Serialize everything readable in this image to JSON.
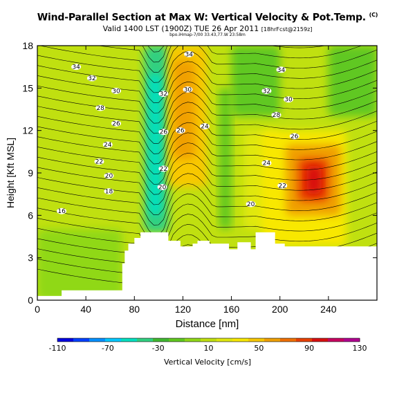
{
  "chart_data": {
    "type": "heatmap",
    "title": "Wind-Parallel Section at Max W: Vertical Velocity & Pot.Temp.",
    "title_mark": "(C)",
    "subtitle": "Valid 1400 LST (1900Z) TUE 26 Apr 2011",
    "subtitle_note": "[18hrFcst@2159z]",
    "credit": "bpo.iHmap-7/00 33.43,77.W 23:58m",
    "xlabel": "Distance [nm]",
    "ylabel": "Height [Kft MSL]",
    "xlim": [
      0,
      280
    ],
    "ylim": [
      0,
      18
    ],
    "xticks": [
      0,
      40,
      80,
      120,
      160,
      200,
      240
    ],
    "yticks": [
      0,
      3,
      6,
      9,
      12,
      15,
      18
    ],
    "colorbar": {
      "label": "Vertical Velocity [cm/s]",
      "ticks": [
        -110,
        -70,
        -30,
        10,
        50,
        90,
        130
      ],
      "colors": [
        "#0000e0",
        "#0040ff",
        "#0090ff",
        "#00c8ff",
        "#00e0c0",
        "#30d080",
        "#40b830",
        "#60c820",
        "#90d818",
        "#c0e010",
        "#e0e810",
        "#f8e800",
        "#f8c800",
        "#f0a000",
        "#f07000",
        "#e84000",
        "#d81010",
        "#c80060",
        "#b00090"
      ]
    },
    "fill_regions": [
      {
        "x": [
          0,
          280
        ],
        "y": [
          0,
          18
        ],
        "w": 5
      },
      {
        "x": [
          0,
          70
        ],
        "y": [
          0,
          5
        ],
        "w": 0
      },
      {
        "x": [
          88,
          108
        ],
        "y": [
          4.8,
          18
        ],
        "w": -40
      },
      {
        "x": [
          92,
          102
        ],
        "y": [
          6,
          16
        ],
        "w": -55
      },
      {
        "x": [
          108,
          140
        ],
        "y": [
          8,
          18
        ],
        "w": 45
      },
      {
        "x": [
          112,
          130
        ],
        "y": [
          10,
          17
        ],
        "w": 60
      },
      {
        "x": [
          150,
          160
        ],
        "y": [
          5,
          15
        ],
        "w": -10
      },
      {
        "x": [
          170,
          200
        ],
        "y": [
          5,
          12
        ],
        "w": 20
      },
      {
        "x": [
          185,
          255
        ],
        "y": [
          3.8,
          12
        ],
        "w": 40
      },
      {
        "x": [
          205,
          250
        ],
        "y": [
          6,
          11
        ],
        "w": 65
      },
      {
        "x": [
          215,
          240
        ],
        "y": [
          7,
          10
        ],
        "w": 85
      },
      {
        "x": [
          222,
          234
        ],
        "y": [
          7.5,
          9.5
        ],
        "w": 95
      },
      {
        "x": [
          160,
          200
        ],
        "y": [
          13,
          18
        ],
        "w": -15
      },
      {
        "x": [
          240,
          280
        ],
        "y": [
          13,
          18
        ],
        "w": -20
      }
    ],
    "terrain": [
      [
        0,
        0
      ],
      [
        0,
        0.3
      ],
      [
        20,
        0.3
      ],
      [
        20,
        0.7
      ],
      [
        70,
        0.7
      ],
      [
        70,
        2.6
      ],
      [
        72,
        2.6
      ],
      [
        72,
        3.5
      ],
      [
        75,
        3.5
      ],
      [
        75,
        4.0
      ],
      [
        80,
        4.0
      ],
      [
        80,
        4.4
      ],
      [
        85,
        4.4
      ],
      [
        85,
        4.8
      ],
      [
        108,
        4.8
      ],
      [
        108,
        4.2
      ],
      [
        118,
        4.2
      ],
      [
        118,
        3.8
      ],
      [
        128,
        3.8
      ],
      [
        128,
        4.0
      ],
      [
        132,
        4.0
      ],
      [
        132,
        4.2
      ],
      [
        142,
        4.2
      ],
      [
        142,
        4.0
      ],
      [
        158,
        4.0
      ],
      [
        158,
        3.6
      ],
      [
        165,
        3.6
      ],
      [
        165,
        4.1
      ],
      [
        176,
        4.1
      ],
      [
        176,
        3.6
      ],
      [
        180,
        3.6
      ],
      [
        180,
        4.8
      ],
      [
        196,
        4.8
      ],
      [
        196,
        4.0
      ],
      [
        204,
        4.0
      ],
      [
        204,
        3.8
      ],
      [
        280,
        3.8
      ],
      [
        280,
        0
      ]
    ],
    "isentrope_labels": [
      {
        "text": "34",
        "x": 32,
        "y": 16.5
      },
      {
        "text": "32",
        "x": 45,
        "y": 15.7
      },
      {
        "text": "30",
        "x": 65,
        "y": 14.8
      },
      {
        "text": "28",
        "x": 52,
        "y": 13.6
      },
      {
        "text": "26",
        "x": 65,
        "y": 12.5
      },
      {
        "text": "24",
        "x": 58,
        "y": 11.0
      },
      {
        "text": "22",
        "x": 51,
        "y": 9.8
      },
      {
        "text": "20",
        "x": 59,
        "y": 8.8
      },
      {
        "text": "18",
        "x": 59,
        "y": 7.7
      },
      {
        "text": "16",
        "x": 20,
        "y": 6.3
      },
      {
        "text": "32",
        "x": 104,
        "y": 14.6
      },
      {
        "text": "26",
        "x": 104,
        "y": 11.9
      },
      {
        "text": "22",
        "x": 104,
        "y": 9.3
      },
      {
        "text": "20",
        "x": 103,
        "y": 8.0
      },
      {
        "text": "34",
        "x": 125,
        "y": 17.4
      },
      {
        "text": "30",
        "x": 124,
        "y": 14.9
      },
      {
        "text": "26",
        "x": 118,
        "y": 12.0
      },
      {
        "text": "24",
        "x": 138,
        "y": 12.3
      },
      {
        "text": "34",
        "x": 201,
        "y": 16.3
      },
      {
        "text": "32",
        "x": 189,
        "y": 14.8
      },
      {
        "text": "30",
        "x": 207,
        "y": 14.2
      },
      {
        "text": "28",
        "x": 197,
        "y": 13.1
      },
      {
        "text": "26",
        "x": 212,
        "y": 11.6
      },
      {
        "text": "24",
        "x": 189,
        "y": 9.7
      },
      {
        "text": "22",
        "x": 202,
        "y": 8.1
      },
      {
        "text": "20",
        "x": 176,
        "y": 6.8
      }
    ]
  }
}
